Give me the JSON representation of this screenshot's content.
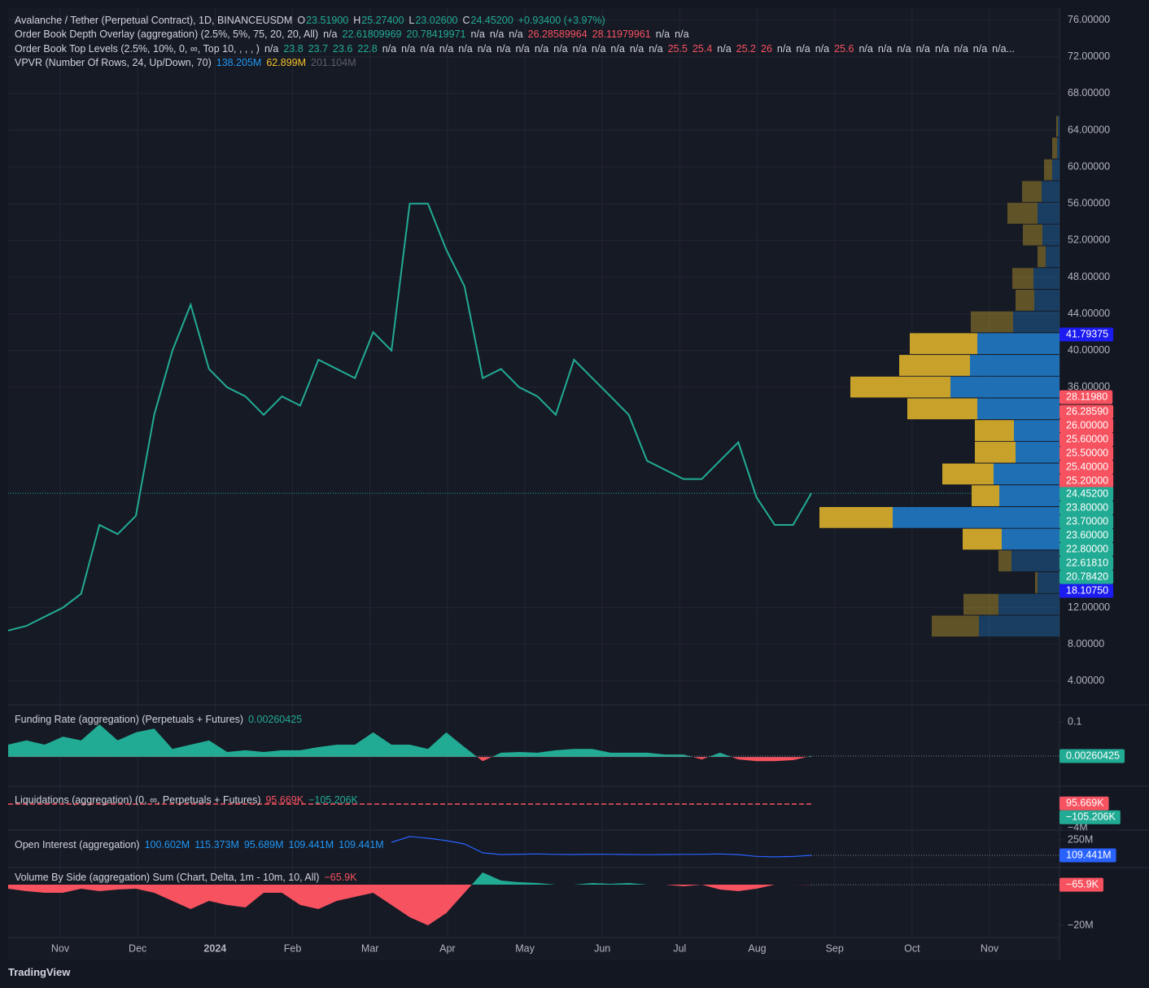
{
  "header": {
    "lines": [
      [
        {
          "text": "Avalanche / Tether (Perpetual Contract), 1D, BINANCEUSDM",
          "color": "#d1d4dc"
        },
        {
          "text": "O",
          "color": "#d1d4dc"
        },
        {
          "text": "23.51900",
          "color": "#22ab94"
        },
        {
          "text": "H",
          "color": "#d1d4dc"
        },
        {
          "text": "25.27400",
          "color": "#22ab94"
        },
        {
          "text": "L",
          "color": "#d1d4dc"
        },
        {
          "text": "23.02600",
          "color": "#22ab94"
        },
        {
          "text": "C",
          "color": "#d1d4dc"
        },
        {
          "text": "24.45200",
          "color": "#22ab94"
        },
        {
          "text": "+0.93400 (+3.97%)",
          "color": "#22ab94"
        }
      ],
      [
        {
          "text": "Order Book Depth Overlay (aggregation) (2.5%, 5%, 75, 20, 20, All)",
          "color": "#d1d4dc"
        },
        {
          "text": "n/a",
          "color": "#d1d4dc"
        },
        {
          "text": "22.61809969",
          "color": "#22ab94"
        },
        {
          "text": "20.78419971",
          "color": "#22ab94"
        },
        {
          "text": "n/a",
          "color": "#d1d4dc"
        },
        {
          "text": "n/a",
          "color": "#d1d4dc"
        },
        {
          "text": "n/a",
          "color": "#d1d4dc"
        },
        {
          "text": "26.28589964",
          "color": "#f7525f"
        },
        {
          "text": "28.11979961",
          "color": "#f7525f"
        },
        {
          "text": "n/a",
          "color": "#d1d4dc"
        },
        {
          "text": "n/a",
          "color": "#d1d4dc"
        }
      ],
      [
        {
          "text": "Order Book Top Levels (2.5%, 10%, 0, ∞, Top 10, , , , )",
          "color": "#d1d4dc"
        },
        {
          "text": "n/a",
          "color": "#d1d4dc"
        },
        {
          "text": "23.8",
          "color": "#22ab94"
        },
        {
          "text": "23.7",
          "color": "#22ab94"
        },
        {
          "text": "23.6",
          "color": "#22ab94"
        },
        {
          "text": "22.8",
          "color": "#22ab94"
        },
        {
          "text": "n/a",
          "color": "#d1d4dc"
        },
        {
          "text": "n/a",
          "color": "#d1d4dc"
        },
        {
          "text": "n/a",
          "color": "#d1d4dc"
        },
        {
          "text": "n/a",
          "color": "#d1d4dc"
        },
        {
          "text": "n/a",
          "color": "#d1d4dc"
        },
        {
          "text": "n/a",
          "color": "#d1d4dc"
        },
        {
          "text": "n/a",
          "color": "#d1d4dc"
        },
        {
          "text": "n/a",
          "color": "#d1d4dc"
        },
        {
          "text": "n/a",
          "color": "#d1d4dc"
        },
        {
          "text": "n/a",
          "color": "#d1d4dc"
        },
        {
          "text": "n/a",
          "color": "#d1d4dc"
        },
        {
          "text": "n/a",
          "color": "#d1d4dc"
        },
        {
          "text": "n/a",
          "color": "#d1d4dc"
        },
        {
          "text": "n/a",
          "color": "#d1d4dc"
        },
        {
          "text": "n/a",
          "color": "#d1d4dc"
        },
        {
          "text": "25.5",
          "color": "#f7525f"
        },
        {
          "text": "25.4",
          "color": "#f7525f"
        },
        {
          "text": "n/a",
          "color": "#d1d4dc"
        },
        {
          "text": "25.2",
          "color": "#f7525f"
        },
        {
          "text": "26",
          "color": "#f7525f"
        },
        {
          "text": "n/a",
          "color": "#d1d4dc"
        },
        {
          "text": "n/a",
          "color": "#d1d4dc"
        },
        {
          "text": "n/a",
          "color": "#d1d4dc"
        },
        {
          "text": "25.6",
          "color": "#f7525f"
        },
        {
          "text": "n/a",
          "color": "#d1d4dc"
        },
        {
          "text": "n/a",
          "color": "#d1d4dc"
        },
        {
          "text": "n/a",
          "color": "#d1d4dc"
        },
        {
          "text": "n/a",
          "color": "#d1d4dc"
        },
        {
          "text": "n/a",
          "color": "#d1d4dc"
        },
        {
          "text": "n/a",
          "color": "#d1d4dc"
        },
        {
          "text": "n/a",
          "color": "#d1d4dc"
        },
        {
          "text": "n/a...",
          "color": "#d1d4dc"
        }
      ],
      [
        {
          "text": "VPVR (Number Of Rows, 24, Up/Down, 70)",
          "color": "#d1d4dc"
        },
        {
          "text": "138.205M",
          "color": "#2196f3"
        },
        {
          "text": "62.899M",
          "color": "#f5c226"
        },
        {
          "text": "201.104M",
          "color": "#5d606b"
        }
      ]
    ]
  },
  "brand": "TradingView",
  "chart_data": [
    {
      "type": "line",
      "color": "#22ab94",
      "grid": true,
      "values": [
        9.5,
        10,
        11,
        12,
        13.5,
        21,
        20,
        22,
        33,
        40,
        45,
        38,
        36,
        35,
        33,
        35,
        34,
        39,
        38,
        37,
        42,
        40,
        56,
        56,
        51,
        47,
        37,
        38,
        36,
        35,
        33,
        39,
        37,
        35,
        33,
        28,
        27,
        26,
        26,
        28,
        30,
        24,
        21,
        21,
        24.452
      ],
      "ylim": [
        1.5,
        77.3
      ],
      "yticks": [
        {
          "value": 76,
          "label": "76.00000"
        },
        {
          "value": 72,
          "label": "72.00000"
        },
        {
          "value": 68,
          "label": "68.00000"
        },
        {
          "value": 64,
          "label": "64.00000"
        },
        {
          "value": 60,
          "label": "60.00000"
        },
        {
          "value": 56,
          "label": "56.00000"
        },
        {
          "value": 52,
          "label": "52.00000"
        },
        {
          "value": 48,
          "label": "48.00000"
        },
        {
          "value": 44,
          "label": "44.00000"
        },
        {
          "value": 40,
          "label": "40.00000"
        },
        {
          "value": 36,
          "label": "36.00000"
        },
        {
          "value": 12,
          "label": "12.00000"
        },
        {
          "value": 8,
          "label": "8.00000"
        },
        {
          "value": 4,
          "label": "4.00000"
        }
      ],
      "x_axis_labels": [
        "Nov",
        "Dec",
        "2024",
        "Feb",
        "Mar",
        "Apr",
        "May",
        "Jun",
        "Jul",
        "Aug",
        "Sep",
        "Oct",
        "Nov"
      ],
      "price_labels": [
        {
          "value": 41.79375,
          "label": "41.79375",
          "color": "#1c1cf0"
        },
        {
          "value": 28.1198,
          "label": "28.11980",
          "color": "#f7525f"
        },
        {
          "value": 26.2859,
          "label": "26.28590",
          "color": "#f7525f"
        },
        {
          "value": 26,
          "label": "26.00000",
          "color": "#f7525f"
        },
        {
          "value": 25.6,
          "label": "25.60000",
          "color": "#f7525f"
        },
        {
          "value": 25.5,
          "label": "25.50000",
          "color": "#f7525f"
        },
        {
          "value": 25.4,
          "label": "25.40000",
          "color": "#f7525f"
        },
        {
          "value": 25.2,
          "label": "25.20000",
          "color": "#f7525f"
        },
        {
          "value": 24.452,
          "label": "24.45200",
          "color": "#22ab94"
        },
        {
          "value": 23.8,
          "label": "23.80000",
          "color": "#22ab94"
        },
        {
          "value": 23.7,
          "label": "23.70000",
          "color": "#22ab94"
        },
        {
          "value": 23.6,
          "label": "23.60000",
          "color": "#22ab94"
        },
        {
          "value": 22.8,
          "label": "22.80000",
          "color": "#22ab94"
        },
        {
          "value": 22.6181,
          "label": "22.61810",
          "color": "#22ab94"
        },
        {
          "value": 20.7842,
          "label": "20.78420",
          "color": "#22ab94"
        },
        {
          "value": 18.1075,
          "label": "18.10750",
          "color": "#1c1cf0"
        }
      ]
    },
    {
      "type": "volume-profile",
      "up_color": "#1f6fb5",
      "down_color": "#c8a12a",
      "row_height": 2.367,
      "value_area": [
        4,
        13
      ],
      "rows": [
        {
          "low": 8.8,
          "down": 5.8,
          "up": 9.9
        },
        {
          "low": 11.17,
          "down": 4.3,
          "up": 7.5
        },
        {
          "low": 13.53,
          "down": 0.3,
          "up": 2.7
        },
        {
          "low": 15.9,
          "down": 1.6,
          "up": 5.9
        },
        {
          "low": 18.27,
          "down": 4.8,
          "up": 7.1
        },
        {
          "low": 20.63,
          "down": 9,
          "up": 20.5
        },
        {
          "low": 23,
          "down": 3.4,
          "up": 7.4
        },
        {
          "low": 25.37,
          "down": 6.3,
          "up": 8.1
        },
        {
          "low": 27.74,
          "down": 5,
          "up": 5.4
        },
        {
          "low": 30.1,
          "down": 4.8,
          "up": 5.6
        },
        {
          "low": 32.47,
          "down": 8.6,
          "up": 10.1
        },
        {
          "low": 34.84,
          "down": 12.3,
          "up": 13.4
        },
        {
          "low": 37.2,
          "down": 8.7,
          "up": 11
        },
        {
          "low": 39.57,
          "down": 8.3,
          "up": 10.1
        },
        {
          "low": 41.94,
          "down": 5.2,
          "up": 5.7
        },
        {
          "low": 44.3,
          "down": 2.3,
          "up": 3.1
        },
        {
          "low": 46.67,
          "down": 2.6,
          "up": 3.2
        },
        {
          "low": 49.04,
          "down": 1,
          "up": 1.7
        },
        {
          "low": 51.41,
          "down": 2.4,
          "up": 2.1
        },
        {
          "low": 53.77,
          "down": 3.7,
          "up": 2.7
        },
        {
          "low": 56.14,
          "down": 2.4,
          "up": 2.2
        },
        {
          "low": 58.51,
          "down": 1,
          "up": 0.9
        },
        {
          "low": 60.87,
          "down": 0.6,
          "up": 0.3
        },
        {
          "low": 63.24,
          "down": 0.2,
          "up": 0.2
        }
      ]
    },
    {
      "type": "area",
      "up_color": "#22ab94",
      "down_color": "#f7525f",
      "legend": [
        {
          "text": "Funding Rate (aggregation) (Perpetuals + Futures)",
          "color": "#d1d4dc"
        },
        {
          "text": "0.00260425",
          "color": "#22ab94"
        }
      ],
      "values": [
        0.035,
        0.047,
        0.035,
        0.058,
        0.047,
        0.093,
        0.047,
        0.07,
        0.081,
        0.023,
        0.035,
        0.047,
        0.014,
        0.019,
        0.014,
        0.019,
        0.019,
        0.028,
        0.035,
        0.035,
        0.07,
        0.035,
        0.035,
        0.023,
        0.07,
        0.028,
        -0.012,
        0.012,
        0.014,
        0.012,
        0.019,
        0.023,
        0.023,
        0.012,
        0.012,
        0.012,
        0.007,
        0.007,
        -0.007,
        0.012,
        -0.007,
        -0.012,
        -0.012,
        -0.009,
        0.00260425
      ],
      "ylim": [
        -0.081,
        0.144
      ],
      "yticks": [
        0.1
      ],
      "price_labels": [
        {
          "value": 0.00260425,
          "label": "0.00260425",
          "color": "#22ab94"
        }
      ]
    },
    {
      "type": "liquidations",
      "color": "#f7525f",
      "legend": [
        {
          "text": "Liquidations (aggregation) (0, ∞, Perpetuals + Futures)",
          "color": "#d1d4dc"
        },
        {
          "text": "95.669K",
          "color": "#f7525f"
        },
        {
          "text": "−105.206K",
          "color": "#22ab94"
        }
      ],
      "ylim": [
        -4.14,
        2.76
      ],
      "yticks": [
        {
          "value": -4,
          "label": "−4M"
        }
      ],
      "price_labels": [
        {
          "value": 0.095669,
          "label": "95.669K",
          "color": "#f7525f"
        },
        {
          "value": -0.105206,
          "label": "−105.206K",
          "color": "#22ab94"
        }
      ]
    },
    {
      "type": "line",
      "color": "#2962ff",
      "legend": [
        {
          "text": "Open Interest (aggregation)",
          "color": "#d1d4dc"
        },
        {
          "text": "100.602M",
          "color": "#2196f3"
        },
        {
          "text": "115.373M",
          "color": "#2196f3"
        },
        {
          "text": "95.689M",
          "color": "#2196f3"
        },
        {
          "text": "109.441M",
          "color": "#2196f3"
        },
        {
          "text": "109.441M",
          "color": "#2196f3"
        }
      ],
      "values": [
        null,
        null,
        null,
        null,
        null,
        null,
        null,
        null,
        null,
        null,
        null,
        null,
        null,
        null,
        null,
        null,
        null,
        null,
        null,
        null,
        null,
        228,
        280,
        265,
        243,
        213,
        132,
        117,
        120,
        122,
        118,
        117,
        120,
        119,
        117,
        115,
        117,
        118,
        119,
        122,
        116,
        100,
        95,
        99,
        109.441
      ],
      "ylim": [
        5.8,
        324
      ],
      "yticks": [
        {
          "value": 250,
          "label": "250M"
        }
      ],
      "price_labels": [
        {
          "value": 109.441,
          "label": "109.441M",
          "color": "#2962ff"
        }
      ]
    },
    {
      "type": "area",
      "up_color": "#22ab94",
      "down_color": "#f7525f",
      "legend": [
        {
          "text": "Volume By Side (aggregation) Sum (Chart, Delta, 1m - 10m, 10, All)",
          "color": "#d1d4dc"
        },
        {
          "text": "−65.9K",
          "color": "#f7525f"
        }
      ],
      "values": [
        -2,
        -3.2,
        -4,
        -4,
        -2,
        -3.2,
        -2.4,
        -2,
        -4,
        -8,
        -12,
        -8,
        -10,
        -11.2,
        -4,
        -4,
        -10,
        -12,
        -8,
        -6,
        -4,
        -10,
        -16,
        -20,
        -14,
        -4,
        6,
        2,
        1.2,
        0.8,
        0,
        0,
        0.8,
        0.4,
        0.8,
        0,
        0,
        -0.8,
        0,
        -2.4,
        -3.2,
        -2,
        0,
        0,
        -0.0659
      ],
      "ylim": [
        -25.2,
        7.6
      ],
      "yticks": [
        {
          "value": -20,
          "label": "−20M"
        }
      ],
      "price_labels": [
        {
          "value": -0.0659,
          "label": "−65.9K",
          "color": "#f7525f"
        }
      ]
    }
  ]
}
